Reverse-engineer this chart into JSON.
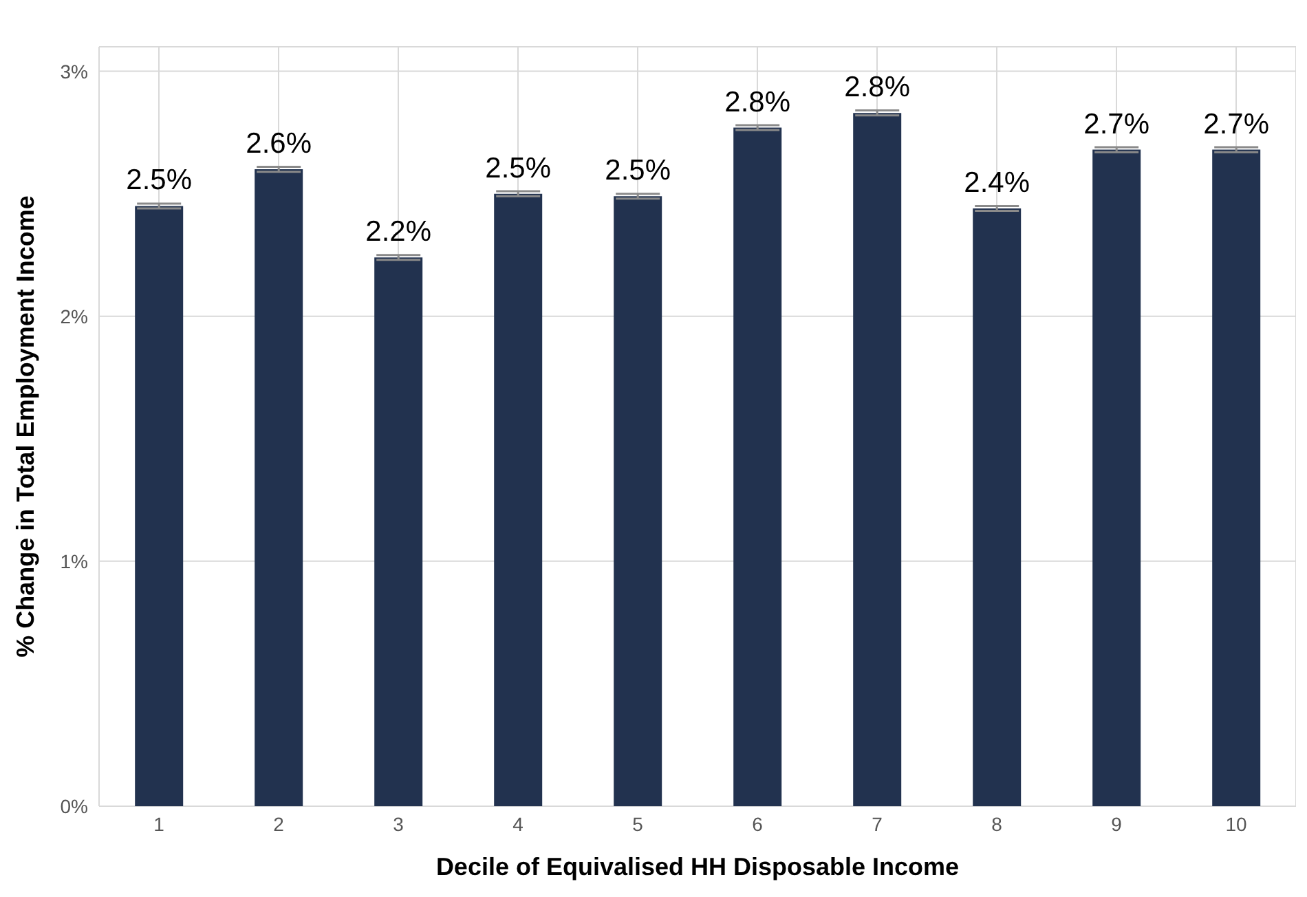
{
  "chart_data": {
    "type": "bar",
    "xlabel": "Decile of Equivalised HH Disposable Income",
    "ylabel": "% Change in Total Employment Income",
    "categories": [
      "1",
      "2",
      "3",
      "4",
      "5",
      "6",
      "7",
      "8",
      "9",
      "10"
    ],
    "values": [
      2.45,
      2.6,
      2.24,
      2.5,
      2.49,
      2.77,
      2.83,
      2.44,
      2.68,
      2.68
    ],
    "errors": [
      0.01,
      0.01,
      0.01,
      0.01,
      0.01,
      0.01,
      0.01,
      0.01,
      0.01,
      0.01
    ],
    "value_labels": [
      "2.5%",
      "2.6%",
      "2.2%",
      "2.5%",
      "2.5%",
      "2.8%",
      "2.8%",
      "2.4%",
      "2.7%",
      "2.7%"
    ],
    "color": "#22324f",
    "ylim": [
      0,
      3.1
    ],
    "yticks": [
      {
        "value": 0,
        "label": "0%"
      },
      {
        "value": 1,
        "label": "1%"
      },
      {
        "value": 2,
        "label": "2%"
      },
      {
        "value": 3,
        "label": "3%"
      }
    ],
    "grid": true
  }
}
